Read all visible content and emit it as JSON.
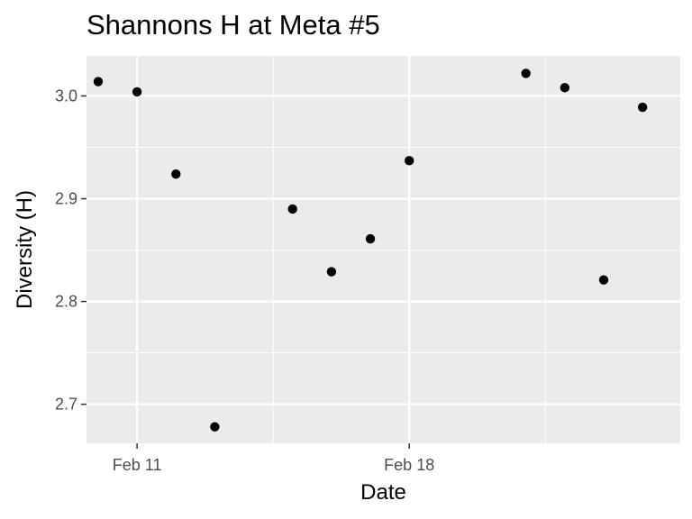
{
  "chart_data": {
    "type": "scatter",
    "title": "Shannons H at Meta #5",
    "xlabel": "Date",
    "ylabel": "Diversity (H)",
    "x_ticks": [
      {
        "label": "Feb 11",
        "day": 11
      },
      {
        "label": "Feb 18",
        "day": 18
      }
    ],
    "y_ticks": [
      {
        "label": "2.7",
        "value": 2.7
      },
      {
        "label": "2.8",
        "value": 2.8
      },
      {
        "label": "2.9",
        "value": 2.9
      },
      {
        "label": "3.0",
        "value": 3.0
      }
    ],
    "xlim": [
      9.7,
      24.97
    ],
    "ylim": [
      2.662,
      3.039
    ],
    "series": [
      {
        "name": "Shannons H",
        "points": [
          {
            "day": 10,
            "date": "Feb 10",
            "value": 3.014
          },
          {
            "day": 11,
            "date": "Feb 11",
            "value": 3.004
          },
          {
            "day": 12,
            "date": "Feb 12",
            "value": 2.924
          },
          {
            "day": 13,
            "date": "Feb 13",
            "value": 2.678
          },
          {
            "day": 15,
            "date": "Feb 15",
            "value": 2.89
          },
          {
            "day": 16,
            "date": "Feb 16",
            "value": 2.829
          },
          {
            "day": 17,
            "date": "Feb 17",
            "value": 2.861
          },
          {
            "day": 18,
            "date": "Feb 18",
            "value": 2.937
          },
          {
            "day": 21,
            "date": "Feb 21",
            "value": 3.022
          },
          {
            "day": 22,
            "date": "Feb 22",
            "value": 3.008
          },
          {
            "day": 23,
            "date": "Feb 23",
            "value": 2.821
          },
          {
            "day": 24,
            "date": "Feb 24",
            "value": 2.989
          }
        ]
      }
    ],
    "colors": {
      "panel_background": "#ebebeb",
      "grid_major": "#ffffff",
      "point": "#000000",
      "tick_text": "#4d4d4d",
      "tick_mark": "#333333"
    }
  }
}
